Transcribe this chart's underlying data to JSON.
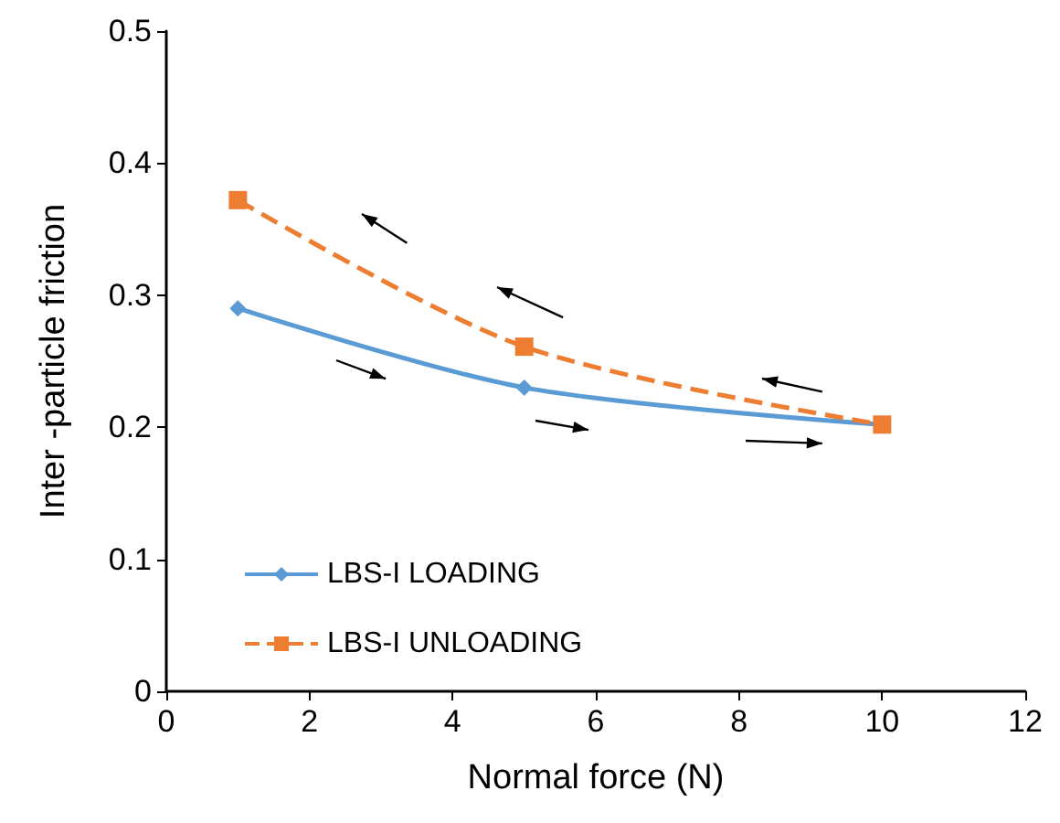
{
  "chart_data": {
    "type": "line",
    "xlabel": "Normal force (N)",
    "ylabel": "Inter -particle friction",
    "x": [
      1,
      5,
      10
    ],
    "series": [
      {
        "name": "LBS-I LOADING",
        "color": "#5b9bd5",
        "values": [
          0.29,
          0.23,
          0.202
        ],
        "marker": "diamond",
        "line_style": "solid"
      },
      {
        "name": "LBS-I UNLOADING",
        "color": "#ed7d31",
        "values": [
          0.372,
          0.261,
          0.202
        ],
        "marker": "square",
        "line_style": "dashed"
      }
    ],
    "xlim": [
      0,
      12
    ],
    "xticks": [
      0,
      2,
      4,
      6,
      8,
      10,
      12
    ],
    "ylim": [
      0,
      0.5
    ],
    "yticks": [
      0,
      0.1,
      0.2,
      0.3,
      0.4,
      0.5
    ],
    "grid": false,
    "legend": "bottom left"
  }
}
